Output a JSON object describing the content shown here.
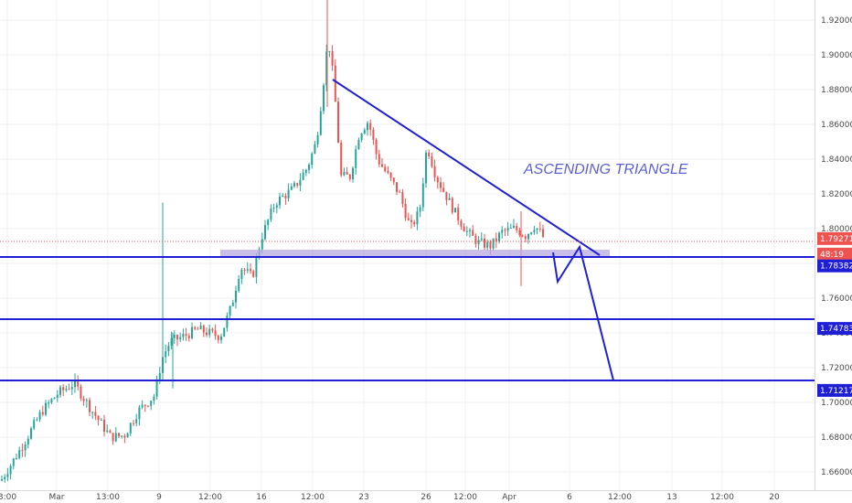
{
  "chart_data": {
    "type": "candlestick",
    "annotation": "ASCENDING TRIANGLE",
    "y_axis": {
      "range": [
        1.652,
        1.932
      ],
      "ticks": [
        "1.66000",
        "1.68000",
        "1.70000",
        "1.72000",
        "1.74000",
        "1.76000",
        "1.78000",
        "1.80000",
        "1.82000",
        "1.84000",
        "1.86000",
        "1.88000",
        "1.90000",
        "1.92000"
      ]
    },
    "x_axis": {
      "ticks": [
        "3:00",
        "Mar",
        "13:00",
        "9",
        "12:00",
        "16",
        "12:00",
        "23",
        "26",
        "12:00",
        "Apr",
        "6",
        "12:00",
        "13",
        "12:00",
        "20"
      ]
    },
    "current_price": "1.79271",
    "countdown": "48:19",
    "levels": [
      {
        "value": 1.78382,
        "label": "1.78382"
      },
      {
        "value": 1.74783,
        "label": "1.74783"
      },
      {
        "value": 1.71217,
        "label": "1.71217"
      }
    ],
    "colors": {
      "up": "#26a69a",
      "down": "#ef5350",
      "lines": "#1f1fd6",
      "zone": "#b8a9e0",
      "annotation": "#5b5fd6"
    },
    "grid": true
  }
}
